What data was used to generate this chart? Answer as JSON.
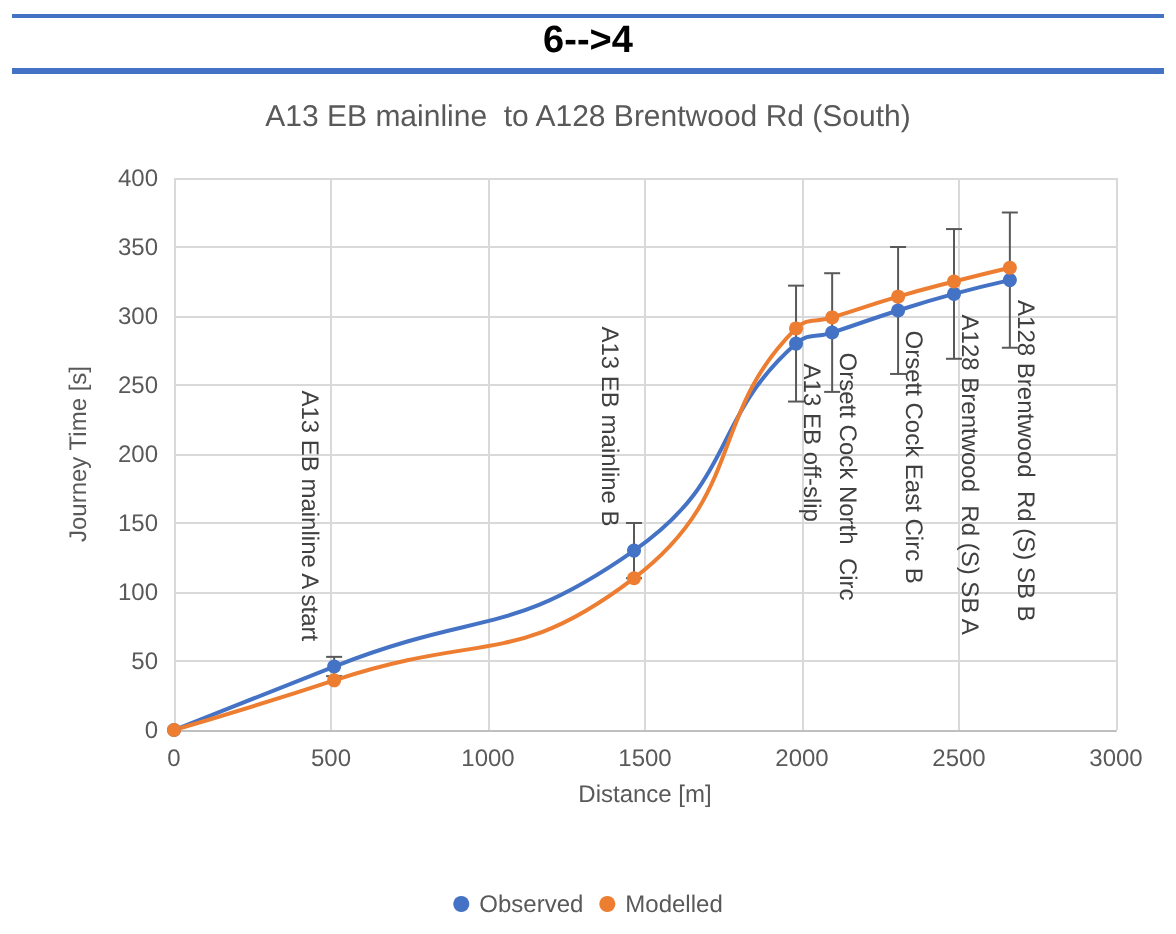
{
  "chart_data": {
    "type": "line",
    "title": "6-->4",
    "subtitle": "A13 EB mainline  to A128 Brentwood Rd (South)",
    "xlabel": "Distance [m]",
    "ylabel": "Journey Time [s]",
    "series": [
      {
        "name": "Observed",
        "color": "#4472c4",
        "x": [
          0,
          510,
          1465,
          1981,
          2096,
          2306,
          2484,
          2662
        ],
        "values": [
          0,
          46,
          130,
          280,
          288,
          304,
          316,
          326
        ],
        "errors": [
          null,
          7,
          20,
          42,
          43,
          46,
          47,
          49
        ]
      },
      {
        "name": "Modelled",
        "color": "#ed7d31",
        "x": [
          0,
          510,
          1465,
          1981,
          2096,
          2306,
          2484,
          2662
        ],
        "values": [
          0,
          36,
          110,
          291,
          299,
          314,
          325,
          335
        ]
      }
    ],
    "annotations": [
      {
        "text": "A13 EB mainline A start",
        "x": 510,
        "y": 46
      },
      {
        "text": "A13 EB mainline B",
        "x": 1465,
        "y": 130
      },
      {
        "text": "A13 EB off-slip",
        "x": 1981,
        "y": 280
      },
      {
        "text": "Orsett Cock North  Circ",
        "x": 2096,
        "y": 288
      },
      {
        "text": "Orsett Cock East Circ B",
        "x": 2306,
        "y": 304
      },
      {
        "text": "A128 Brentwood  Rd (S) SB A",
        "x": 2484,
        "y": 316
      },
      {
        "text": "A128 Brentwood  Rd (S) SB B",
        "x": 2662,
        "y": 326
      }
    ],
    "xlim": [
      0,
      3000
    ],
    "xticks": [
      0,
      500,
      1000,
      1500,
      2000,
      2500,
      3000
    ],
    "ylim": [
      0,
      400
    ],
    "yticks": [
      0,
      50,
      100,
      150,
      200,
      250,
      300,
      350,
      400
    ],
    "grid": true,
    "legend": "bottom",
    "marker": "circle",
    "line_style": "solid"
  }
}
